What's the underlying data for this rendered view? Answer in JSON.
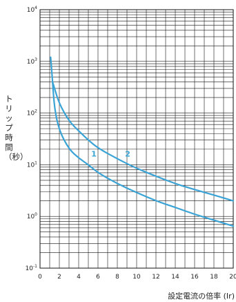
{
  "chart_data": {
    "type": "line",
    "xlabel": "設定電流の倍率 (Ir)",
    "ylabel": "トリップ時間（秒）",
    "xlim": [
      0,
      20
    ],
    "ylim": [
      0.1,
      10000
    ],
    "yscale": "log",
    "grid": true,
    "x_ticks": [
      "0",
      "2",
      "4",
      "6",
      "8",
      "10",
      "12",
      "14",
      "16",
      "18",
      "20"
    ],
    "y_ticks": [
      {
        "base": "10",
        "exp": "-1",
        "value": 0.1
      },
      {
        "base": "10",
        "exp": "0",
        "value": 1
      },
      {
        "base": "10",
        "exp": "1",
        "value": 10
      },
      {
        "base": "10",
        "exp": "2",
        "value": 100
      },
      {
        "base": "10",
        "exp": "3",
        "value": 1000
      },
      {
        "base": "10",
        "exp": "4",
        "value": 10000
      }
    ],
    "series": [
      {
        "name": "1",
        "color": "#3aa3d6",
        "points": [
          [
            1.1,
            1200
          ],
          [
            1.3,
            400
          ],
          [
            1.5,
            120
          ],
          [
            2,
            45
          ],
          [
            3,
            20
          ],
          [
            4,
            13.5
          ],
          [
            5,
            10
          ],
          [
            6,
            7
          ],
          [
            8,
            4.3
          ],
          [
            10,
            2.9
          ],
          [
            12,
            2
          ],
          [
            14,
            1.5
          ],
          [
            16,
            1.1
          ],
          [
            18,
            0.85
          ],
          [
            20,
            0.65
          ]
        ]
      },
      {
        "name": "2",
        "color": "#3aa3d6",
        "points": [
          [
            1.3,
            400
          ],
          [
            1.5,
            300
          ],
          [
            2,
            150
          ],
          [
            3,
            70
          ],
          [
            4,
            45
          ],
          [
            5,
            30
          ],
          [
            6,
            21
          ],
          [
            8,
            13
          ],
          [
            10,
            8.5
          ],
          [
            12,
            6
          ],
          [
            14,
            4.3
          ],
          [
            16,
            3.3
          ],
          [
            18,
            2.6
          ],
          [
            20,
            2
          ]
        ]
      }
    ]
  }
}
